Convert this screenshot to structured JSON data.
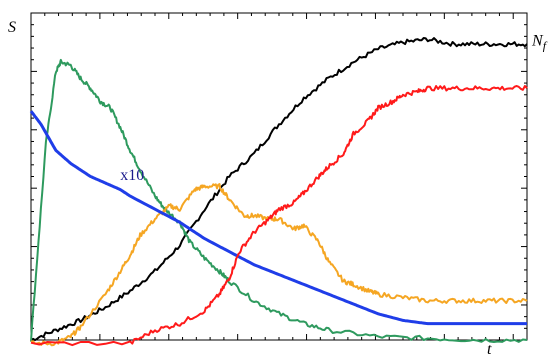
{
  "chart_data": {
    "type": "line",
    "ylabel": "S",
    "xlabel": "t",
    "xlim": [
      0,
      100
    ],
    "ylim": [
      0,
      100
    ],
    "grid": false,
    "annotations": [
      {
        "text": "x10",
        "x": 18,
        "y": 49
      },
      {
        "text": "Nf",
        "x": 99,
        "y": 90
      }
    ],
    "series": [
      {
        "color": "#000000",
        "x": [
          0,
          5,
          10,
          15,
          20,
          25,
          30,
          35,
          40,
          45,
          50,
          55,
          60,
          65,
          70,
          75,
          80,
          85,
          90,
          95,
          100
        ],
        "values": [
          0,
          3,
          6,
          10,
          15,
          21,
          29,
          40,
          50,
          57,
          66,
          74,
          80,
          85,
          89,
          91,
          92,
          90.5,
          90.5,
          90.5,
          90.5
        ]
      },
      {
        "color": "#2e9a5e",
        "x": [
          0,
          3,
          5,
          6,
          8,
          10,
          12,
          14,
          16,
          18,
          20,
          22,
          25,
          27,
          30,
          32,
          35,
          38,
          40,
          45,
          50,
          55,
          60,
          70,
          80,
          90,
          100
        ],
        "values": [
          0,
          60,
          82,
          85,
          84,
          80,
          77,
          73,
          71,
          65,
          58,
          52,
          44,
          40,
          36,
          30,
          25,
          21,
          18,
          12,
          8,
          5,
          3,
          1,
          0.5,
          0,
          0
        ]
      },
      {
        "color": "#f5a623",
        "x": [
          0,
          5,
          8,
          10,
          15,
          18,
          20,
          22,
          25,
          28,
          30,
          33,
          35,
          38,
          40,
          43,
          45,
          48,
          50,
          53,
          55,
          58,
          60,
          63,
          65,
          68,
          70,
          75,
          80,
          85,
          90,
          95,
          100
        ],
        "values": [
          -1,
          -1,
          1,
          4,
          14,
          21,
          26,
          32,
          37,
          41,
          40,
          46,
          47,
          47,
          43,
          38,
          38,
          37,
          37,
          34,
          35,
          30,
          24,
          18,
          17,
          15,
          14,
          13,
          12,
          12,
          12,
          12,
          12
        ]
      },
      {
        "color": "#1f3de8",
        "x": [
          0,
          2,
          5,
          8,
          10,
          12,
          15,
          18,
          20,
          25,
          30,
          35,
          40,
          45,
          50,
          55,
          60,
          65,
          70,
          75,
          80,
          85,
          90,
          95,
          100
        ],
        "values": [
          70,
          66,
          58,
          54,
          52,
          50,
          48,
          46,
          44,
          40,
          36,
          31,
          27,
          23,
          20,
          17,
          14,
          11,
          8,
          6,
          5,
          5,
          5,
          5,
          5
        ]
      },
      {
        "color": "#ff1a1a",
        "x": [
          0,
          20,
          25,
          30,
          35,
          38,
          40,
          42,
          45,
          48,
          50,
          53,
          55,
          58,
          60,
          63,
          65,
          68,
          70,
          73,
          75,
          78,
          80,
          85,
          90,
          95,
          100
        ],
        "values": [
          -1,
          -1,
          3,
          5,
          9,
          14,
          19,
          27,
          33,
          37,
          40,
          42,
          45,
          50,
          53,
          57,
          63,
          67,
          71,
          73,
          75,
          76,
          77,
          77,
          77,
          77,
          77
        ]
      }
    ]
  }
}
